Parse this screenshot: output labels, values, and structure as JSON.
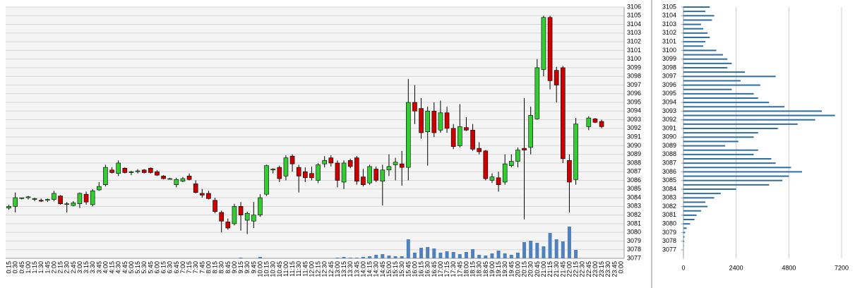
{
  "chart_data": [
    {
      "type": "candlestick",
      "categories": [
        "0:15",
        "0:30",
        "0:45",
        "1:00",
        "1:15",
        "1:30",
        "1:45",
        "2:00",
        "2:15",
        "2:30",
        "2:45",
        "3:00",
        "3:15",
        "3:30",
        "3:45",
        "4:00",
        "4:15",
        "4:30",
        "4:45",
        "5:00",
        "5:15",
        "5:30",
        "5:45",
        "6:00",
        "6:15",
        "6:30",
        "6:45",
        "7:00",
        "7:15",
        "7:30",
        "7:45",
        "8:00",
        "8:15",
        "8:30",
        "8:45",
        "9:00",
        "9:15",
        "9:30",
        "9:45",
        "10:00",
        "10:15",
        "10:30",
        "10:45",
        "11:00",
        "11:15",
        "11:30",
        "11:45",
        "12:00",
        "12:15",
        "12:30",
        "12:45",
        "13:00",
        "13:15",
        "13:30",
        "13:45",
        "14:00",
        "14:15",
        "14:30",
        "14:45",
        "15:00",
        "15:15",
        "15:30",
        "15:45",
        "16:00",
        "16:15",
        "16:30",
        "16:45",
        "17:00",
        "17:15",
        "17:30",
        "17:45",
        "18:00",
        "18:15",
        "18:30",
        "18:45",
        "19:00",
        "19:15",
        "19:30",
        "19:45",
        "20:00",
        "20:15",
        "20:30",
        "20:45",
        "21:00",
        "21:15",
        "21:30",
        "21:45",
        "22:00",
        "22:15",
        "22:30",
        "22:45",
        "23:00",
        "23:15",
        "23:30",
        "23:45",
        "0:00"
      ],
      "open": [
        3082.8,
        3083.0,
        3083.9,
        3084.0,
        3083.8,
        3083.7,
        3083.7,
        3083.8,
        3084.2,
        3083.3,
        3083.1,
        3083.3,
        3084.4,
        3083.2,
        3084.9,
        3085.5,
        3087.2,
        3086.8,
        3087.4,
        3086.9,
        3087.0,
        3087.2,
        3087.4,
        3087.0,
        3086.5,
        3086.2,
        3085.5,
        3085.9,
        3086.5,
        3085.6,
        3084.5,
        3084.5,
        3083.7,
        3082.3,
        3081.2,
        3081.0,
        3083.0,
        3081.4,
        3081.3,
        3082.0,
        3084.4,
        3087.2,
        3087.5,
        3086.5,
        3088.8,
        3087.5,
        3087.0,
        3086.8,
        3086.0,
        3087.9,
        3088.6,
        3088.0,
        3085.8,
        3088.3,
        3088.6,
        3086.4,
        3085.7,
        3087.3,
        3085.9,
        3087.2,
        3087.8,
        3087.9,
        3087.5,
        3095.0,
        3094.3,
        3091.6,
        3094.0,
        3091.8,
        3093.8,
        3092.0,
        3090.0,
        3092.1,
        3091.8,
        3089.7,
        3089.4,
        3086.0,
        3086.3,
        3085.8,
        3087.7,
        3088.2,
        3089.7,
        3089.8,
        3093.1,
        3098.8,
        3104.8,
        3098.7,
        3099.0,
        3088.3,
        3086.1,
        null,
        3092.2,
        3093.1,
        3092.8,
        null,
        null,
        null
      ],
      "high": [
        3083.2,
        3084.6,
        3084.0,
        3084.2,
        3084.0,
        3083.9,
        3083.9,
        3084.8,
        3084.3,
        3083.5,
        3083.6,
        3084.6,
        3084.7,
        3085.0,
        3085.8,
        3087.8,
        3087.5,
        3088.3,
        3087.5,
        3087.1,
        3087.3,
        3087.3,
        3087.5,
        3087.2,
        3086.6,
        3086.3,
        3086.3,
        3086.4,
        3086.8,
        3086.0,
        3085.0,
        3084.8,
        3084.0,
        3082.5,
        3081.6,
        3083.3,
        3083.5,
        3082.4,
        3083.5,
        3084.4,
        3087.8,
        3087.4,
        3087.7,
        3088.9,
        3089.0,
        3087.8,
        3087.5,
        3087.6,
        3088.0,
        3088.8,
        3088.9,
        3088.3,
        3088.3,
        3088.5,
        3088.8,
        3087.3,
        3087.8,
        3087.6,
        3087.8,
        3089.0,
        3088.6,
        3089.4,
        3097.7,
        3097.0,
        3095.5,
        3094.5,
        3095.0,
        3095.2,
        3094.5,
        3092.5,
        3094.8,
        3093.3,
        3092.5,
        3090.4,
        3089.5,
        3086.8,
        3087.0,
        3089.0,
        3089.0,
        3089.8,
        3095.5,
        3094.5,
        3100.0,
        3105.0,
        3105.0,
        3099.1,
        3099.2,
        3089.0,
        3093.2,
        null,
        3093.4,
        3093.2,
        3093.0,
        null,
        null,
        null
      ],
      "low": [
        3082.6,
        3082.3,
        3083.8,
        3083.8,
        3083.6,
        3083.5,
        3083.5,
        3083.6,
        3083.2,
        3082.3,
        3083.0,
        3082.8,
        3083.2,
        3083.0,
        3084.8,
        3085.3,
        3086.8,
        3086.5,
        3086.8,
        3086.6,
        3086.8,
        3086.8,
        3086.8,
        3086.5,
        3086.1,
        3086.1,
        3085.2,
        3085.8,
        3086.0,
        3084.5,
        3084.0,
        3083.8,
        3082.2,
        3080.0,
        3080.3,
        3080.8,
        3080.2,
        3079.8,
        3080.5,
        3081.8,
        3084.2,
        3086.8,
        3085.8,
        3086.0,
        3087.0,
        3084.6,
        3085.8,
        3086.0,
        3085.7,
        3087.5,
        3087.6,
        3085.2,
        3085.0,
        3087.4,
        3085.5,
        3085.3,
        3085.5,
        3085.8,
        3083.1,
        3086.5,
        3086.0,
        3085.4,
        3086.0,
        3092.5,
        3090.8,
        3087.7,
        3091.0,
        3091.5,
        3091.5,
        3089.6,
        3089.8,
        3091.7,
        3089.4,
        3089.0,
        3086.0,
        3085.7,
        3084.7,
        3085.5,
        3087.5,
        3087.5,
        3081.5,
        3089.0,
        3093.0,
        3098.0,
        3096.5,
        3095.0,
        3088.0,
        3082.3,
        3085.5,
        null,
        3091.8,
        3092.6,
        3092.0,
        null,
        null,
        null
      ],
      "close": [
        3083.0,
        3084.0,
        3084.0,
        3084.1,
        3083.9,
        3083.6,
        3083.8,
        3084.5,
        3083.3,
        3083.3,
        3083.4,
        3084.5,
        3083.5,
        3084.8,
        3085.3,
        3087.5,
        3086.9,
        3088.0,
        3086.9,
        3087.0,
        3087.1,
        3086.9,
        3086.9,
        3086.6,
        3086.2,
        3086.2,
        3086.1,
        3086.2,
        3086.1,
        3084.6,
        3084.3,
        3083.9,
        3082.4,
        3081.3,
        3080.5,
        3083.0,
        3082.0,
        3082.2,
        3082.0,
        3084.0,
        3087.7,
        3087.3,
        3086.2,
        3088.6,
        3087.9,
        3086.5,
        3086.3,
        3086.3,
        3087.8,
        3088.3,
        3088.0,
        3086.0,
        3088.0,
        3087.6,
        3085.9,
        3085.5,
        3087.6,
        3086.0,
        3087.2,
        3087.6,
        3088.1,
        3087.5,
        3095.0,
        3094.0,
        3091.5,
        3094.0,
        3091.5,
        3093.8,
        3092.0,
        3089.9,
        3092.2,
        3091.8,
        3089.6,
        3089.3,
        3086.2,
        3086.4,
        3085.5,
        3087.9,
        3088.2,
        3089.5,
        3089.5,
        3093.5,
        3099.0,
        3104.8,
        3097.5,
        3097.0,
        3088.5,
        3085.8,
        3092.5,
        null,
        3093.2,
        3092.7,
        3092.2,
        null,
        null,
        null
      ],
      "volume": [
        0,
        0,
        0,
        0,
        0,
        0,
        0,
        0,
        0,
        0,
        0,
        0,
        0,
        0,
        0,
        0,
        0,
        0,
        0,
        0,
        0,
        0,
        0,
        0,
        0,
        0,
        0,
        0,
        0,
        0,
        0,
        0,
        0,
        0,
        0,
        0,
        1,
        0,
        0,
        2,
        0,
        0,
        0,
        0,
        0,
        0,
        0,
        0,
        0,
        0,
        0,
        1,
        2,
        1,
        1,
        2,
        3,
        5,
        6,
        4,
        3,
        3,
        27,
        8,
        15,
        16,
        14,
        8,
        10,
        9,
        6,
        9,
        13,
        5,
        4,
        7,
        11,
        7,
        5,
        8,
        23,
        25,
        22,
        17,
        36,
        27,
        24,
        45,
        12,
        0,
        0,
        0,
        0,
        0,
        0,
        0
      ],
      "up_color": "#33cc33",
      "down_color": "#cc0000",
      "volume_color": "#4f81bd",
      "ylim": [
        3077,
        3106
      ],
      "yticks": [
        3077,
        3078,
        3079,
        3080,
        3081,
        3082,
        3083,
        3084,
        3085,
        3086,
        3087,
        3088,
        3089,
        3090,
        3091,
        3092,
        3093,
        3094,
        3095,
        3096,
        3097,
        3098,
        3099,
        3100,
        3101,
        3102,
        3103,
        3104,
        3105,
        3106
      ],
      "grid": true
    },
    {
      "type": "volume_profile",
      "y": [
        3105,
        3104.5,
        3104,
        3103.5,
        3103,
        3102.5,
        3102,
        3101.5,
        3101,
        3100.5,
        3100,
        3099.5,
        3099,
        3098.5,
        3098,
        3097.5,
        3097,
        3096.5,
        3096,
        3095.5,
        3095,
        3094.5,
        3094,
        3093.5,
        3093,
        3092.5,
        3092,
        3091.5,
        3091,
        3090.5,
        3090,
        3089.5,
        3089,
        3088.5,
        3088,
        3087.5,
        3087,
        3086.5,
        3086,
        3085.5,
        3085,
        3084.5,
        3084,
        3083.5,
        3083,
        3082.5,
        3082,
        3081.5,
        3081,
        3080.5,
        3080,
        3079.5,
        3079,
        3078.5,
        3078,
        3077.5
      ],
      "values": [
        1200,
        1000,
        1400,
        1300,
        800,
        900,
        1100,
        1200,
        1000,
        900,
        1500,
        1800,
        2000,
        2200,
        2000,
        2800,
        4200,
        2600,
        3500,
        2200,
        3200,
        3400,
        3900,
        4600,
        6300,
        6900,
        6000,
        5200,
        4300,
        3400,
        3200,
        2500,
        1900,
        3400,
        3200,
        4000,
        4200,
        4900,
        5400,
        4800,
        4500,
        3900,
        2400,
        1700,
        1400,
        1000,
        1100,
        800,
        600,
        500,
        300,
        150,
        80,
        50,
        30,
        20
      ],
      "color": "#2f6f9f",
      "xlim": [
        0,
        7200
      ],
      "xticks": [
        0,
        2400,
        4800,
        7200
      ],
      "ylim": [
        3077,
        3105
      ],
      "yticks": [
        3077,
        3078,
        3079,
        3080,
        3081,
        3082,
        3083,
        3084,
        3085,
        3086,
        3087,
        3088,
        3089,
        3090,
        3091,
        3092,
        3093,
        3094,
        3095,
        3096,
        3097,
        3098,
        3099,
        3100,
        3101,
        3102,
        3103,
        3104,
        3105
      ],
      "grid": true
    }
  ]
}
